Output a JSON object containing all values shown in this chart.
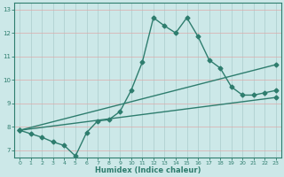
{
  "xlabel": "Humidex (Indice chaleur)",
  "xlim": [
    -0.5,
    23.5
  ],
  "ylim": [
    6.7,
    13.3
  ],
  "xticks": [
    0,
    1,
    2,
    3,
    4,
    5,
    6,
    7,
    8,
    9,
    10,
    11,
    12,
    13,
    14,
    15,
    16,
    17,
    18,
    19,
    20,
    21,
    22,
    23
  ],
  "yticks": [
    7,
    8,
    9,
    10,
    11,
    12,
    13
  ],
  "bg_color": "#cce8e8",
  "grid_color_h": "#ddaaaa",
  "grid_color_v": "#aacccc",
  "line_color": "#2e7d6e",
  "line1_x": [
    0,
    1,
    2,
    3,
    4,
    5,
    6,
    7,
    8,
    9,
    10,
    11,
    12,
    13,
    14,
    15,
    16,
    17,
    18,
    19,
    20,
    21,
    22,
    23
  ],
  "line1_y": [
    7.85,
    7.7,
    7.55,
    7.35,
    7.2,
    6.75,
    7.75,
    8.25,
    8.3,
    8.65,
    9.55,
    10.75,
    12.65,
    12.3,
    12.0,
    12.65,
    11.85,
    10.85,
    10.5,
    9.7,
    9.35,
    9.35,
    9.45,
    9.55
  ],
  "line2_x": [
    0,
    23
  ],
  "line2_y": [
    7.85,
    10.65
  ],
  "line3_x": [
    0,
    23
  ],
  "line3_y": [
    7.85,
    9.25
  ],
  "marker": "D",
  "markersize": 2.5,
  "linewidth": 1.0
}
